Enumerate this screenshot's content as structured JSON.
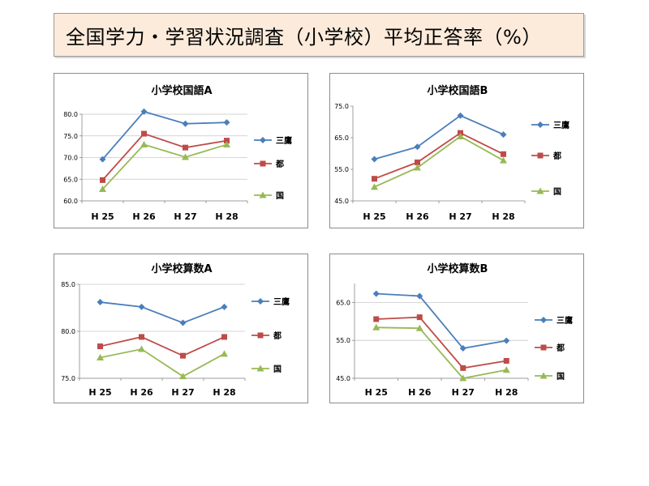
{
  "banner": {
    "title": "全国学力・学習状況調査（小学校）平均正答率（%）"
  },
  "colors": {
    "series": [
      "#4a7ebb",
      "#be4b48",
      "#98b954"
    ]
  },
  "chart_data": [
    {
      "type": "line",
      "title": "小学校国語A",
      "categories": [
        "H 25",
        "H 26",
        "H 27",
        "H 28"
      ],
      "ylim": [
        60,
        80
      ],
      "yticks": [
        60.0,
        65.0,
        70.0,
        75.0,
        80.0
      ],
      "grid": true,
      "legend": "right",
      "series": [
        {
          "name": "三鷹",
          "values": [
            69.6,
            80.6,
            77.8,
            78.1
          ]
        },
        {
          "name": "都",
          "values": [
            64.8,
            75.5,
            72.3,
            73.9
          ]
        },
        {
          "name": "国",
          "values": [
            62.7,
            73.0,
            70.1,
            73.0
          ]
        }
      ]
    },
    {
      "type": "line",
      "title": "小学校国語B",
      "categories": [
        "H 25",
        "H 26",
        "H 27",
        "H 28"
      ],
      "ylim": [
        45,
        75
      ],
      "yticks": [
        45.0,
        55.0,
        65.0,
        75.0
      ],
      "grid": false,
      "legend": "right",
      "series": [
        {
          "name": "三鷹",
          "values": [
            58.2,
            62.1,
            72.0,
            66.0
          ]
        },
        {
          "name": "都",
          "values": [
            52.0,
            57.2,
            66.5,
            59.8
          ]
        },
        {
          "name": "国",
          "values": [
            49.4,
            55.5,
            65.4,
            57.8
          ]
        }
      ]
    },
    {
      "type": "line",
      "title": "小学校算数A",
      "categories": [
        "H 25",
        "H 26",
        "H 27",
        "H 28"
      ],
      "ylim": [
        75,
        85
      ],
      "yticks": [
        75.0,
        80.0,
        85.0
      ],
      "grid": true,
      "legend": "right",
      "series": [
        {
          "name": "三鷹",
          "values": [
            83.1,
            82.6,
            80.9,
            82.6
          ]
        },
        {
          "name": "都",
          "values": [
            78.4,
            79.4,
            77.4,
            79.4
          ]
        },
        {
          "name": "国",
          "values": [
            77.2,
            78.1,
            75.2,
            77.6
          ]
        }
      ]
    },
    {
      "type": "line",
      "title": "小学校算数B",
      "categories": [
        "H 25",
        "H 26",
        "H 27",
        "H 28"
      ],
      "ylim": [
        45,
        70
      ],
      "yticks": [
        45.0,
        55.0,
        65.0
      ],
      "grid": true,
      "legend": "right",
      "series": [
        {
          "name": "三鷹",
          "values": [
            67.3,
            66.7,
            52.9,
            54.9
          ]
        },
        {
          "name": "都",
          "values": [
            60.6,
            61.1,
            47.7,
            49.6
          ]
        },
        {
          "name": "国",
          "values": [
            58.4,
            58.2,
            45.0,
            47.2
          ]
        }
      ]
    }
  ]
}
